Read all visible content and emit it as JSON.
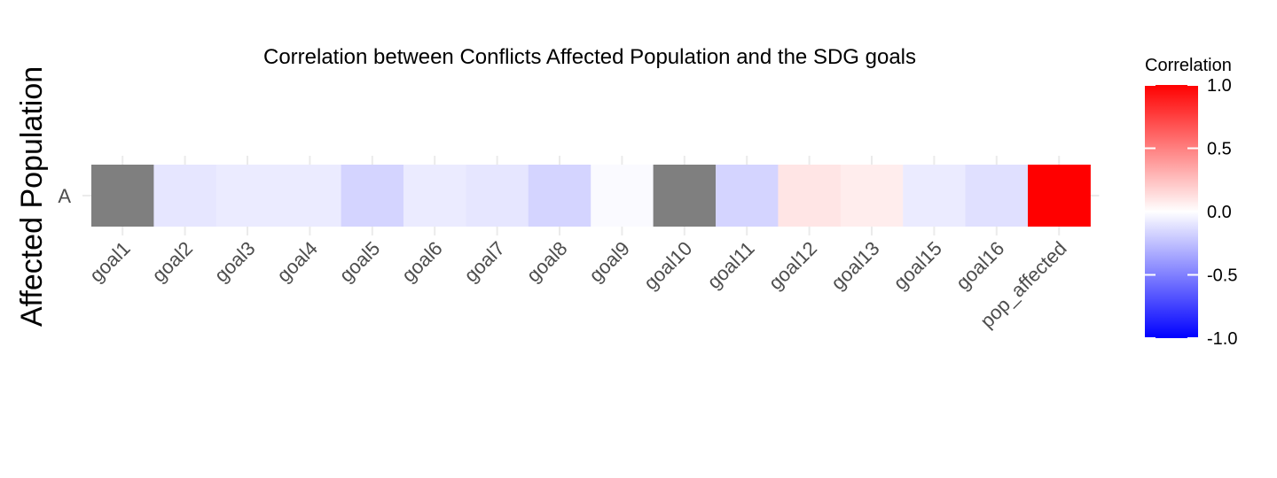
{
  "chart_data": {
    "type": "heatmap",
    "title": "Correlation between Conflicts Affected Population and the SDG goals",
    "ylabel": "Affected Population",
    "xlabel": "",
    "rows": [
      "A"
    ],
    "categories": [
      "goal1",
      "goal2",
      "goal3",
      "goal4",
      "goal5",
      "goal6",
      "goal7",
      "goal8",
      "goal9",
      "goal10",
      "goal11",
      "goal12",
      "goal13",
      "goal15",
      "goal16",
      "pop_affected"
    ],
    "values": [
      null,
      -0.1,
      -0.08,
      -0.08,
      -0.17,
      -0.08,
      -0.1,
      -0.17,
      -0.02,
      null,
      -0.17,
      0.1,
      0.07,
      -0.08,
      -0.12,
      1.0
    ],
    "na_color": "#7f7f7f",
    "color_scale": {
      "low": "#0000ff",
      "mid": "#ffffff",
      "high": "#ff0000",
      "limits": [
        -1,
        1
      ]
    },
    "legend": {
      "title": "Correlation",
      "ticks": [
        "1.0",
        "0.5",
        "0.0",
        "-0.5",
        "-1.0"
      ],
      "tick_values": [
        1.0,
        0.5,
        0.0,
        -0.5,
        -1.0
      ],
      "placement": "right"
    },
    "grid": true
  }
}
